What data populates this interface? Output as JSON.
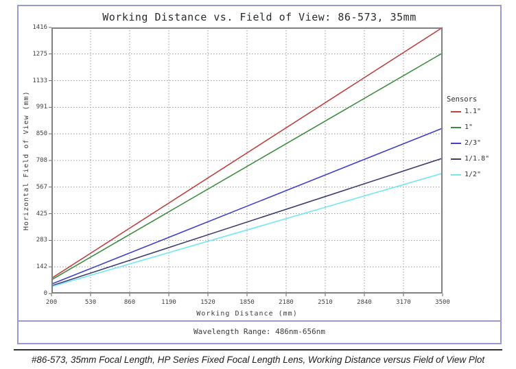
{
  "page": {
    "caption": "#86-573, 35mm Focal Length, HP Series Fixed Focal Length Lens, Working Distance versus Field of View Plot"
  },
  "chart": {
    "wavelength_note": "Wavelength Range: 486nm-656nm",
    "border_color": "#9699d8",
    "frame_color": "#808080",
    "grid_color": "#999999",
    "tick_color": "#666666"
  },
  "chart_data": {
    "type": "line",
    "title": "Working Distance vs. Field of View: 86-573, 35mm",
    "xlabel": "Working Distance (mm)",
    "ylabel": "Horizontal Field of View (mm)",
    "xlim": [
      200,
      3500
    ],
    "ylim": [
      0,
      1416
    ],
    "xticks": [
      200,
      530,
      860,
      1190,
      1520,
      1850,
      2180,
      2510,
      2840,
      3170,
      3500
    ],
    "yticks": [
      0,
      142,
      283,
      425,
      567,
      708,
      850,
      991,
      1133,
      1275,
      1416
    ],
    "grid": true,
    "grid_style": "dotted",
    "legend_title": "Sensors",
    "legend_position": "right",
    "series": [
      {
        "name": "1.1\"",
        "color": "#bf3f3f",
        "x": [
          200,
          3500
        ],
        "y": [
          81,
          1416
        ]
      },
      {
        "name": "1\"",
        "color": "#3f8c3f",
        "x": [
          200,
          3500
        ],
        "y": [
          73,
          1280
        ]
      },
      {
        "name": "2/3\"",
        "color": "#3f3fcc",
        "x": [
          200,
          3500
        ],
        "y": [
          50,
          880
        ]
      },
      {
        "name": "1/1.8\"",
        "color": "#3c3c70",
        "x": [
          200,
          3500
        ],
        "y": [
          41,
          720
        ]
      },
      {
        "name": "1/2\"",
        "color": "#70e8ef",
        "x": [
          200,
          3500
        ],
        "y": [
          37,
          640
        ]
      }
    ]
  }
}
